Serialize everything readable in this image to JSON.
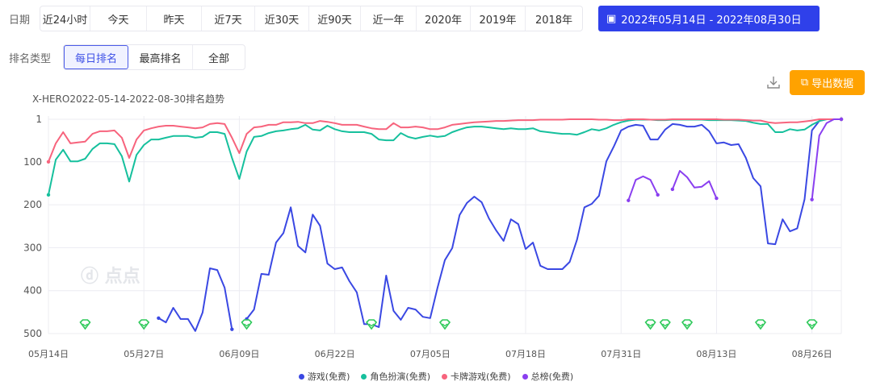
{
  "filters": {
    "date_label": "日期",
    "date_options": [
      "近24小时",
      "今天",
      "昨天",
      "近7天",
      "近30天",
      "近90天",
      "近一年",
      "2020年",
      "2019年",
      "2018年"
    ],
    "date_range": "2022年05月14日 - 2022年08月30日",
    "rank_type_label": "排名类型",
    "rank_types": [
      "每日排名",
      "最高排名",
      "全部"
    ],
    "rank_type_selected": "每日排名"
  },
  "toolbar": {
    "export_label": "导出数据"
  },
  "watermark": "点点",
  "colors": {
    "accent": "#2f40ea",
    "export": "#ffa200"
  },
  "chart_data": {
    "type": "line",
    "title": "X-HERO2022-05-14-2022-08-30排名趋势",
    "y_inverted": true,
    "ylim": [
      1,
      500
    ],
    "y_ticks": [
      "1",
      "100",
      "200",
      "300",
      "400",
      "500"
    ],
    "y_tick_values": [
      1,
      100,
      200,
      300,
      400,
      500
    ],
    "x_days": 109,
    "x_ticks": [
      "05月14日",
      "05月27日",
      "06月09日",
      "06月22日",
      "07月05日",
      "07月18日",
      "07月31日",
      "08月13日",
      "08月26日"
    ],
    "x_tick_days": [
      0,
      13,
      26,
      39,
      52,
      65,
      78,
      91,
      104
    ],
    "event_marker_days": [
      5,
      13,
      27,
      44,
      54,
      82,
      84,
      87,
      97,
      104
    ],
    "series": [
      {
        "name": "游戏(免费)",
        "color": "#3a48e3",
        "segments": [
          {
            "start": 15,
            "values": [
              464,
              474,
              440,
              466,
              466,
              494,
              451,
              348,
              352,
              393,
              490
            ]
          },
          {
            "start": 27,
            "values": [
              466,
              444,
              361,
              363,
              288,
              266,
              206,
              296,
              311,
              223,
              249,
              337,
              350,
              346,
              378,
              404,
              478,
              478,
              485,
              365,
              447,
              468,
              440,
              444,
              461,
              464,
              393,
              329,
              301,
              224,
              196,
              181,
              194,
              232,
              260,
              284,
              234,
              245,
              303,
              288,
              342,
              350,
              350,
              350,
              333,
              281,
              206,
              198,
              179,
              99,
              65,
              27,
              18,
              14,
              16,
              48,
              48,
              25,
              12,
              14,
              18,
              18,
              14,
              29,
              57,
              55,
              61,
              59,
              91,
              138,
              157,
              290,
              292,
              234,
              262,
              255,
              187,
              27,
              5,
              1,
              1,
              1
            ]
          }
        ]
      },
      {
        "name": "角色扮演(免费)",
        "color": "#16c09d",
        "segments": [
          {
            "start": 0,
            "values": [
              177,
              95,
              72,
              99,
              99,
              93,
              70,
              57,
              57,
              59,
              87,
              146,
              84,
              61,
              48,
              48,
              44,
              40,
              40,
              40,
              44,
              42,
              31,
              31,
              35,
              91,
              140,
              76,
              42,
              40,
              33,
              29,
              27,
              24,
              22,
              14,
              25,
              27,
              16,
              24,
              29,
              31,
              31,
              31,
              35,
              48,
              50,
              50,
              33,
              42,
              46,
              42,
              39,
              42,
              40,
              31,
              25,
              20,
              18,
              18,
              20,
              22,
              24,
              22,
              24,
              24,
              22,
              29,
              31,
              33,
              35,
              35,
              37,
              31,
              24,
              27,
              22,
              14,
              8,
              4,
              2,
              2,
              2,
              3,
              3,
              2,
              2,
              2,
              2,
              2,
              3,
              3,
              3,
              3,
              4,
              5,
              9,
              12,
              12,
              31,
              31,
              24,
              27,
              25,
              14,
              5,
              1,
              1,
              1
            ]
          }
        ]
      },
      {
        "name": "卡牌游戏(免费)",
        "color": "#f7647d",
        "segments": [
          {
            "start": 0,
            "values": [
              100,
              57,
              31,
              57,
              55,
              53,
              35,
              29,
              29,
              27,
              44,
              91,
              48,
              27,
              22,
              18,
              16,
              16,
              18,
              20,
              22,
              20,
              12,
              10,
              12,
              44,
              80,
              35,
              20,
              18,
              14,
              14,
              8,
              8,
              7,
              10,
              10,
              5,
              7,
              10,
              14,
              14,
              14,
              18,
              22,
              24,
              24,
              10,
              20,
              20,
              18,
              20,
              24,
              24,
              20,
              14,
              12,
              10,
              8,
              7,
              6,
              5,
              5,
              4,
              3,
              3,
              3,
              2,
              2,
              2,
              2,
              1,
              1,
              1,
              1,
              2,
              2,
              3,
              3,
              1,
              1,
              1,
              2,
              2,
              2,
              1,
              1,
              1,
              1,
              1,
              1,
              1,
              2,
              2,
              2,
              3,
              4,
              4,
              8,
              10,
              9,
              8,
              8,
              6,
              4,
              1,
              1,
              1,
              1
            ]
          }
        ]
      },
      {
        "name": "总榜(免费)",
        "color": "#8a3ff0",
        "segments": [
          {
            "start": 79,
            "values": [
              190,
              142,
              134,
              142,
              177
            ]
          },
          {
            "start": 85,
            "values": [
              164,
              121,
              136,
              160,
              158,
              145,
              185
            ]
          },
          {
            "start": 104,
            "values": [
              188,
              39,
              10,
              1,
              1
            ]
          }
        ]
      }
    ],
    "legend_position": "bottom",
    "grid": true
  }
}
